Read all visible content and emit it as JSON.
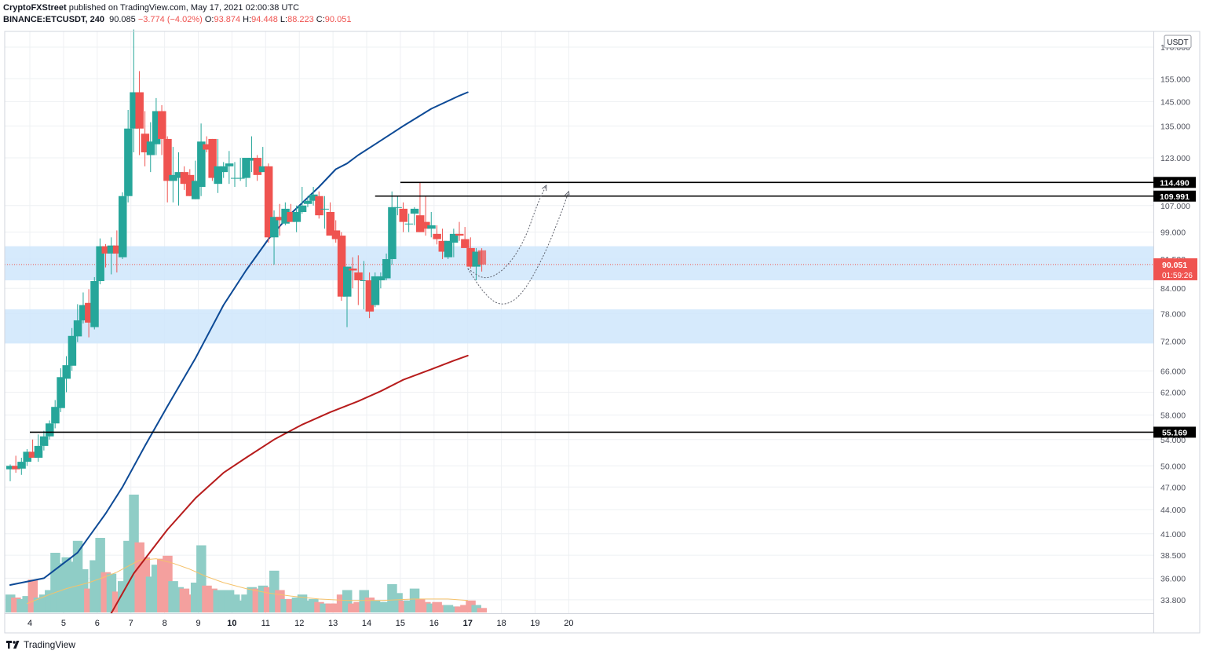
{
  "header": {
    "author": "CryptoFXStreet",
    "published": "published on TradingView.com, May 17, 2021 02:00:38 UTC",
    "symbol": "BINANCE:ETCUSDT, 240",
    "last": "90.085",
    "change": "−3.774 (−4.02%)",
    "o_label": "O:",
    "o_value": "93.874",
    "h_label": "H:",
    "h_value": "94.448",
    "l_label": "L:",
    "l_value": "88.223",
    "c_label": "C:",
    "c_value": "90.051"
  },
  "footer": {
    "brand": "TradingView"
  },
  "colors": {
    "up": "#26a69a",
    "down": "#ef5350",
    "vol_up": "#8fcdc6",
    "vol_down": "#f4a09e",
    "ma_blue": "#0d4a96",
    "ma_red": "#b71c1c",
    "vol_ma": "#f5c26b",
    "zone": "#cfe6fb",
    "grid": "#eef0f3"
  },
  "chart_data": {
    "type": "candlestick",
    "currency_label": "USDT",
    "price_axis": {
      "scale": "log",
      "min": 32.5,
      "max": 178,
      "ticks": [
        170,
        155,
        145,
        135,
        123,
        107,
        99,
        91.5,
        84,
        78,
        72,
        66,
        62,
        58,
        54,
        50,
        47,
        44,
        41,
        38.5,
        36,
        33.8
      ],
      "tick_labels": [
        "170.000",
        "155.000",
        "145.000",
        "135.000",
        "123.000",
        "107.000",
        "99.000",
        "91.500",
        "84.000",
        "78.000",
        "72.000",
        "66.000",
        "62.000",
        "58.000",
        "54.000",
        "50.000",
        "47.000",
        "44.000",
        "41.000",
        "38.500",
        "36.000",
        "33.800"
      ]
    },
    "x_axis": {
      "labels": [
        "4",
        "5",
        "6",
        "7",
        "8",
        "9",
        "10",
        "11",
        "12",
        "13",
        "14",
        "15",
        "16",
        "17",
        "18",
        "19",
        "20"
      ],
      "bold": [
        "10",
        "17"
      ],
      "positions": [
        3.5,
        9.5,
        15.5,
        21.5,
        27.5,
        33.5,
        39.5,
        45.5,
        51.5,
        57.5,
        63.5,
        69.5,
        75.5,
        81.5,
        87.5,
        93.5,
        99.5
      ]
    },
    "candles": [
      [
        49.5,
        50.2,
        47.8,
        50.0,
        0.12
      ],
      [
        50.0,
        51.5,
        49.0,
        49.5,
        0.1
      ],
      [
        49.6,
        51.2,
        48.7,
        50.6,
        0.09
      ],
      [
        50.6,
        52.5,
        50.0,
        52.1,
        0.11
      ],
      [
        52.1,
        54.0,
        51.5,
        51.2,
        0.22
      ],
      [
        51.2,
        54.8,
        50.6,
        53.0,
        0.1
      ],
      [
        53.0,
        55.4,
        52.3,
        54.5,
        0.12
      ],
      [
        54.5,
        57.1,
        54.0,
        56.6,
        0.15
      ],
      [
        56.6,
        60.6,
        55.8,
        59.4,
        0.4
      ],
      [
        59.2,
        66.5,
        58.5,
        64.8,
        0.33
      ],
      [
        64.5,
        68.9,
        62.0,
        67.1,
        0.37
      ],
      [
        67.0,
        74.8,
        66.0,
        73.1,
        0.34
      ],
      [
        73.0,
        80.2,
        71.8,
        76.5,
        0.48
      ],
      [
        76.5,
        83.0,
        75.8,
        80.0,
        0.29
      ],
      [
        80.5,
        83.8,
        72.8,
        76.0,
        0.16
      ],
      [
        75.0,
        86.8,
        74.5,
        85.8,
        0.35
      ],
      [
        85.8,
        97.2,
        85.0,
        95.0,
        0.5
      ],
      [
        95.0,
        95.6,
        89.3,
        93.0,
        0.27
      ],
      [
        93.0,
        97.5,
        87.5,
        95.2,
        0.26
      ],
      [
        95.2,
        99.5,
        88.0,
        93.0,
        0.14
      ],
      [
        92.0,
        111.2,
        91.5,
        110.0,
        0.21
      ],
      [
        110.0,
        141.5,
        108.0,
        134.0,
        0.48
      ],
      [
        134.0,
        179.0,
        125.0,
        149.0,
        0.79
      ],
      [
        149.0,
        158.5,
        124.0,
        134.0,
        0.47
      ],
      [
        132.0,
        141.0,
        120.0,
        125.0,
        0.37
      ],
      [
        124.0,
        136.5,
        118.0,
        129.0,
        0.24
      ],
      [
        128.0,
        146.5,
        124.0,
        141.0,
        0.32
      ],
      [
        141.0,
        143.5,
        124.0,
        130.0,
        0.36
      ],
      [
        130.0,
        131.0,
        108.0,
        115.0,
        0.38
      ],
      [
        115.0,
        127.0,
        108.0,
        117.0,
        0.21
      ],
      [
        116.0,
        125.0,
        107.0,
        118.0,
        0.17
      ],
      [
        118.0,
        120.0,
        112.0,
        114.0,
        0.16
      ],
      [
        117.0,
        119.0,
        110.0,
        110.0,
        0.12
      ],
      [
        109.0,
        122.0,
        109.0,
        115.0,
        0.2
      ],
      [
        113.0,
        136.0,
        110.0,
        129.0,
        0.45
      ],
      [
        128.0,
        131.0,
        125.0,
        126.0,
        0.18
      ],
      [
        130.0,
        130.0,
        115.0,
        116.0,
        0.16
      ],
      [
        114.0,
        130.0,
        111.0,
        120.0,
        0.15
      ],
      [
        118.0,
        121.5,
        116.0,
        120.0,
        0.15
      ],
      [
        120.0,
        125.5,
        114.0,
        121.0,
        0.15
      ],
      [
        116.0,
        121.5,
        113.0,
        116.0,
        0.12
      ],
      [
        116.0,
        123.0,
        115.0,
        116.0,
        0.08
      ],
      [
        116.0,
        122.0,
        113.0,
        123.0,
        0.12
      ],
      [
        122.0,
        131.0,
        118.0,
        123.0,
        0.17
      ],
      [
        123.0,
        124.0,
        115.0,
        117.0,
        0.16
      ],
      [
        118.0,
        127.0,
        118.0,
        120.0,
        0.18
      ],
      [
        120.0,
        121.0,
        96.0,
        97.5,
        0.17
      ],
      [
        97.5,
        105.5,
        90.0,
        103.5,
        0.28
      ],
      [
        103.5,
        107.5,
        98.0,
        102.5,
        0.15
      ],
      [
        101.5,
        108.0,
        101.0,
        106.0,
        0.09
      ],
      [
        105.0,
        107.5,
        102.0,
        102.0,
        0.09
      ],
      [
        102.0,
        107.0,
        99.0,
        105.0,
        0.1
      ],
      [
        105.0,
        113.0,
        104.5,
        107.0,
        0.12
      ],
      [
        107.5,
        110.0,
        106.5,
        108.5,
        0.08
      ],
      [
        108.5,
        113.0,
        107.0,
        110.5,
        0.09
      ],
      [
        110.0,
        111.5,
        103.0,
        104.0,
        0.07
      ],
      [
        106.0,
        110.0,
        100.0,
        106.0,
        0.06
      ],
      [
        105.0,
        108.0,
        98.0,
        98.0,
        0.06
      ],
      [
        99.5,
        102.5,
        96.0,
        97.0,
        0.06
      ],
      [
        98.0,
        99.0,
        81.0,
        82.0,
        0.12
      ],
      [
        82.0,
        89.5,
        75.0,
        89.5,
        0.15
      ],
      [
        89.0,
        92.0,
        84.0,
        88.5,
        0.06
      ],
      [
        88.0,
        92.5,
        80.0,
        86.0,
        0.07
      ],
      [
        86.0,
        91.0,
        79.0,
        86.0,
        0.15
      ],
      [
        86.0,
        88.0,
        77.0,
        78.5,
        0.1
      ],
      [
        80.0,
        88.0,
        79.5,
        87.0,
        0.08
      ],
      [
        86.0,
        88.0,
        84.0,
        87.0,
        0.07
      ],
      [
        86.5,
        93.0,
        86.0,
        91.5,
        0.07
      ],
      [
        91.5,
        111.5,
        90.0,
        106.5,
        0.19
      ],
      [
        106.5,
        110.0,
        104.0,
        106.5,
        0.13
      ],
      [
        106.0,
        108.0,
        99.0,
        102.0,
        0.08
      ],
      [
        101.5,
        104.5,
        99.0,
        101.5,
        0.08
      ],
      [
        104.5,
        106.5,
        101.0,
        106.0,
        0.16
      ],
      [
        104.0,
        114.5,
        99.0,
        99.0,
        0.09
      ],
      [
        102.0,
        110.0,
        98.0,
        100.0,
        0.07
      ],
      [
        100.0,
        105.0,
        97.5,
        101.0,
        0.06
      ],
      [
        98.5,
        101.0,
        95.5,
        97.0,
        0.07
      ],
      [
        96.5,
        100.0,
        91.5,
        93.5,
        0.05
      ],
      [
        92.0,
        95.5,
        91.5,
        96.5,
        0.05
      ],
      [
        96.0,
        100.0,
        92.0,
        98.5,
        0.04
      ],
      [
        98.5,
        102.0,
        96.5,
        98.0,
        0.04
      ],
      [
        97.0,
        100.5,
        95.0,
        94.5,
        0.05
      ],
      [
        94.5,
        97.5,
        89.0,
        89.5,
        0.08
      ],
      [
        89.5,
        94.5,
        86.0,
        93.5,
        0.05
      ],
      [
        93.874,
        94.448,
        88.223,
        90.051,
        0.03
      ]
    ],
    "ma_blue": [
      [
        0,
        35.3
      ],
      [
        6,
        36.0
      ],
      [
        12,
        38.8
      ],
      [
        17,
        43.5
      ],
      [
        20,
        47.0
      ],
      [
        24,
        53.0
      ],
      [
        28,
        59.5
      ],
      [
        33,
        68.5
      ],
      [
        38,
        80.0
      ],
      [
        42,
        88.5
      ],
      [
        46,
        97.0
      ],
      [
        50,
        104.5
      ],
      [
        55,
        113.0
      ],
      [
        58,
        119.0
      ],
      [
        60,
        121.0
      ],
      [
        62,
        124.0
      ],
      [
        65,
        128.0
      ],
      [
        70,
        135.0
      ],
      [
        75,
        142.0
      ],
      [
        80,
        147.5
      ],
      [
        81.5,
        149.0
      ]
    ],
    "ma_red": [
      [
        18,
        32.5
      ],
      [
        22,
        36.5
      ],
      [
        28,
        41.5
      ],
      [
        33,
        45.5
      ],
      [
        38,
        49.0
      ],
      [
        42,
        51.2
      ],
      [
        47,
        54.0
      ],
      [
        52,
        56.4
      ],
      [
        57,
        58.5
      ],
      [
        62,
        60.4
      ],
      [
        66,
        62.2
      ],
      [
        70,
        64.3
      ],
      [
        75,
        66.3
      ],
      [
        79,
        68.0
      ],
      [
        81.5,
        69.0
      ]
    ],
    "vol_ma": [
      [
        3,
        0.06
      ],
      [
        7,
        0.12
      ],
      [
        10,
        0.16
      ],
      [
        14,
        0.2
      ],
      [
        17,
        0.24
      ],
      [
        19,
        0.27
      ],
      [
        21,
        0.31
      ],
      [
        23,
        0.35
      ],
      [
        26,
        0.36
      ],
      [
        29,
        0.33
      ],
      [
        32,
        0.29
      ],
      [
        35,
        0.24
      ],
      [
        38,
        0.2
      ],
      [
        42,
        0.16
      ],
      [
        46,
        0.13
      ],
      [
        50,
        0.11
      ],
      [
        55,
        0.09
      ],
      [
        60,
        0.08
      ],
      [
        66,
        0.08
      ],
      [
        72,
        0.09
      ],
      [
        78,
        0.09
      ],
      [
        81.5,
        0.08
      ]
    ],
    "zones": [
      {
        "top": 95.0,
        "bottom": 86.0
      },
      {
        "top": 79.0,
        "bottom": 71.5
      }
    ],
    "horizontal_levels": [
      {
        "value": 114.49,
        "label": "114.490",
        "from_x": 69.5
      },
      {
        "value": 109.991,
        "label": "109.991",
        "from_x": 65.0
      },
      {
        "value": 55.169,
        "label": "55.169",
        "from_x": 3.5
      }
    ],
    "current_price": {
      "label": "90.051",
      "timer": "01:59:26",
      "value": 90.051
    },
    "projections": [
      [
        [
          81.5,
          89.0
        ],
        [
          84.5,
          86.0
        ],
        [
          88.0,
          88.5
        ],
        [
          91.5,
          96.0
        ],
        [
          94.0,
          108.0
        ],
        [
          95.5,
          113.5
        ]
      ],
      [
        [
          81.5,
          89.0
        ],
        [
          84.5,
          82.5
        ],
        [
          87.5,
          79.6
        ],
        [
          91.0,
          82.0
        ],
        [
          95.0,
          92.0
        ],
        [
          98.0,
          104.0
        ],
        [
          99.5,
          111.5
        ]
      ]
    ]
  }
}
